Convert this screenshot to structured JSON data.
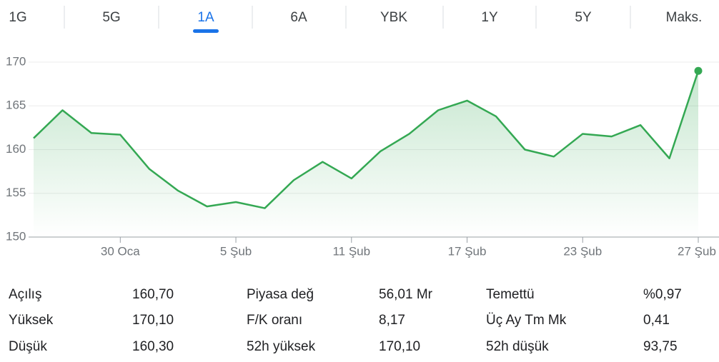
{
  "tabs": [
    "1G",
    "5G",
    "1A",
    "6A",
    "YBK",
    "1Y",
    "5Y",
    "Maks."
  ],
  "active_tab": 2,
  "chart_data": {
    "type": "line",
    "categories": [
      null,
      null,
      null,
      "30 Oca",
      null,
      null,
      null,
      "5 Şub",
      null,
      null,
      null,
      "11 Şub",
      null,
      null,
      null,
      "17 Şub",
      null,
      null,
      null,
      "23 Şub",
      null,
      null,
      null,
      "27 Şub"
    ],
    "series": [
      {
        "color": "#34a853",
        "values": [
          161.3,
          164.5,
          161.9,
          161.7,
          157.8,
          155.3,
          153.5,
          154.0,
          153.3,
          156.5,
          158.6,
          156.7,
          159.8,
          161.8,
          164.5,
          165.6,
          163.8,
          160.0,
          159.2,
          161.8,
          161.5,
          162.8,
          159.0,
          169.0
        ]
      }
    ],
    "ylim": [
      150,
      170
    ],
    "yticks": [
      150,
      155,
      160,
      165,
      170
    ],
    "grid": true
  },
  "stats": [
    [
      [
        "Açılış",
        "160,70"
      ],
      [
        "Piyasa değ",
        "56,01 Mr"
      ],
      [
        "Temettü",
        "%0,97"
      ]
    ],
    [
      [
        "Yüksek",
        "170,10"
      ],
      [
        "F/K oranı",
        "8,17"
      ],
      [
        "Üç Ay Tm Mk",
        "0,41"
      ]
    ],
    [
      [
        "Düşük",
        "160,30"
      ],
      [
        "52h yüksek",
        "170,10"
      ],
      [
        "52h düşük",
        "93,75"
      ]
    ]
  ]
}
